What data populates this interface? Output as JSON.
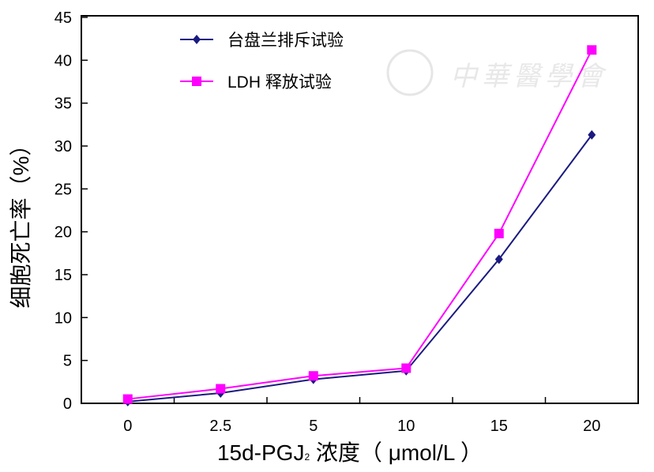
{
  "chart_data": {
    "type": "line",
    "categories": [
      "0",
      "2.5",
      "5",
      "10",
      "15",
      "20"
    ],
    "xlabel_main": "15d-PGJ",
    "xlabel_sub": "2",
    "xlabel_rest": " 浓度（ μmol/L ）",
    "ylabel": "细胞死亡率（%）",
    "ylim": [
      0,
      45
    ],
    "yticks": [
      0,
      5,
      10,
      15,
      20,
      25,
      30,
      35,
      40,
      45
    ],
    "legend_position": "top-left",
    "series": [
      {
        "name": "台盘兰排斥试验",
        "color": "#1a1a80",
        "marker": "diamond",
        "values": [
          0.2,
          1.2,
          2.8,
          3.8,
          16.8,
          31.3
        ]
      },
      {
        "name": "LDH 释放试验",
        "color": "#ff00ff",
        "marker": "square",
        "values": [
          0.5,
          1.7,
          3.2,
          4.1,
          19.8,
          41.2
        ]
      }
    ],
    "watermark": "中華醫學會"
  }
}
